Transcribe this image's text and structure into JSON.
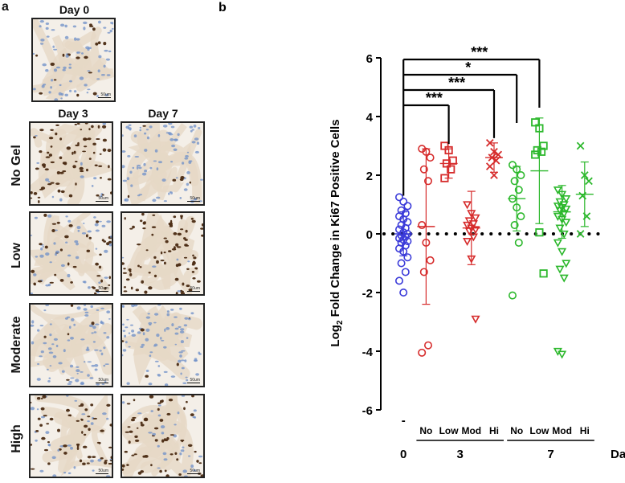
{
  "panel_a": {
    "letter": "a",
    "day0_title": "Day 0",
    "day3_title": "Day 3",
    "day7_title": "Day 7",
    "rows": [
      "No Gel",
      "Low",
      "Moderate",
      "High"
    ],
    "scale_label": "50um",
    "stain_colors": {
      "nuclei_blue": "#6d8fc8",
      "positive_brown": "#4a2a12",
      "tissue": "#e6d8c6"
    }
  },
  "chart_data": {
    "type": "scatter",
    "panel_letter": "b",
    "title": "",
    "ylabel_prefix": "Log",
    "ylabel_sub": "2",
    "ylabel_suffix": " Fold Change in Ki67 Positive Cells",
    "ylim": [
      -6,
      6
    ],
    "yticks": [
      -6,
      -4,
      -2,
      0,
      2,
      4,
      6
    ],
    "xlabel": "Day",
    "groups": [
      {
        "label": "-",
        "color": "#3b3bd9",
        "marker": "circle",
        "mean": 0.0,
        "sd": 0.75,
        "values": [
          1.25,
          1.1,
          0.95,
          0.8,
          0.7,
          0.6,
          0.5,
          0.4,
          0.3,
          0.2,
          0.15,
          0.05,
          0.0,
          -0.05,
          -0.1,
          -0.15,
          -0.2,
          -0.25,
          -0.3,
          -0.4,
          -0.5,
          -0.6,
          -0.8,
          -1.0,
          -1.3,
          -1.6,
          -2.0
        ]
      },
      {
        "label": "No",
        "color": "#d62b2b",
        "marker": "circle",
        "mean": 0.25,
        "sd": 2.65,
        "values": [
          2.9,
          2.8,
          2.6,
          2.2,
          1.8,
          0.3,
          -0.3,
          -0.9,
          -1.3,
          -3.8,
          -4.05
        ]
      },
      {
        "label": "Low",
        "color": "#d62b2b",
        "marker": "square",
        "mean": 2.4,
        "sd": 0.5,
        "values": [
          3.0,
          2.85,
          2.5,
          2.4,
          2.2,
          1.9
        ]
      },
      {
        "label": "Mod",
        "color": "#d62b2b",
        "marker": "triangle",
        "mean": 0.2,
        "sd": 1.25,
        "values": [
          1.0,
          0.7,
          0.55,
          0.45,
          0.35,
          0.3,
          0.2,
          0.15,
          0.1,
          -0.1,
          -0.25,
          -0.85,
          -2.9
        ]
      },
      {
        "label": "Hi",
        "color": "#d62b2b",
        "marker": "x",
        "mean": 2.6,
        "sd": 0.5,
        "values": [
          3.1,
          2.8,
          2.7,
          2.6,
          2.5,
          2.3,
          2.0
        ]
      },
      {
        "label": "No",
        "color": "#2cb82c",
        "marker": "circle",
        "mean": 1.2,
        "sd": 1.1,
        "values": [
          2.35,
          2.2,
          2.0,
          1.8,
          1.5,
          1.2,
          0.9,
          0.6,
          0.3,
          -0.3,
          -2.1
        ]
      },
      {
        "label": "Low",
        "color": "#2cb82c",
        "marker": "square",
        "mean": 2.15,
        "sd": 1.8,
        "values": [
          3.8,
          3.6,
          3.0,
          2.85,
          2.8,
          2.7,
          0.05,
          -1.35
        ]
      },
      {
        "label": "Mod",
        "color": "#2cb82c",
        "marker": "triangle",
        "mean": 0.75,
        "sd": 0.9,
        "values": [
          1.5,
          1.35,
          1.2,
          1.1,
          1.0,
          0.95,
          0.9,
          0.85,
          0.8,
          0.7,
          0.6,
          0.5,
          0.4,
          0.2,
          0.0,
          -0.3,
          -0.6,
          -1.0,
          -1.2,
          -1.5,
          -4.0,
          -4.1
        ]
      },
      {
        "label": "Hi",
        "color": "#2cb82c",
        "marker": "x",
        "mean": 1.35,
        "sd": 1.1,
        "values": [
          3.0,
          2.0,
          1.8,
          1.3,
          0.6,
          0.0
        ]
      }
    ],
    "day_groups": [
      {
        "label": "0",
        "from": 0,
        "to": 0
      },
      {
        "label": "3",
        "from": 1,
        "to": 4
      },
      {
        "label": "7",
        "from": 5,
        "to": 8
      }
    ],
    "reference_line": {
      "y": 0,
      "style": "dotted"
    },
    "significance": [
      {
        "target": 2,
        "label": "***"
      },
      {
        "target": 4,
        "label": "***"
      },
      {
        "target": 5,
        "label": "*"
      },
      {
        "target": 6,
        "label": "***"
      }
    ]
  }
}
